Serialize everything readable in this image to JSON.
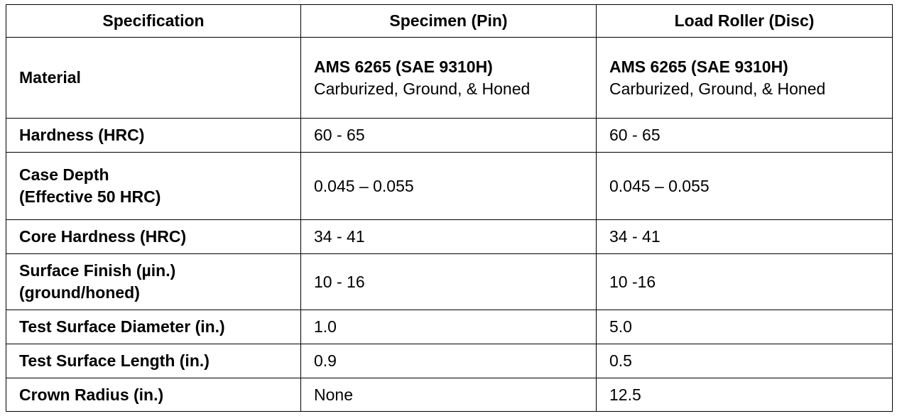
{
  "headers": [
    "Specification",
    "Specimen (Pin)",
    "Load Roller (Disc)"
  ],
  "rows": {
    "material": {
      "label": "Material",
      "pin": {
        "line1": "AMS 6265 (SAE 9310H)",
        "line2": "Carburized, Ground, & Honed"
      },
      "disc": {
        "line1": "AMS 6265 (SAE 9310H)",
        "line2": "Carburized, Ground, & Honed"
      }
    },
    "hardness": {
      "label": "Hardness (HRC)",
      "pin": "60 - 65",
      "disc": "60 - 65"
    },
    "case_depth": {
      "label_line1": "Case Depth",
      "label_line2": "(Effective 50 HRC)",
      "pin": "0.045 – 0.055",
      "disc": "0.045 – 0.055"
    },
    "core_hardness": {
      "label": "Core Hardness (HRC)",
      "pin": "34 - 41",
      "disc": "34 - 41"
    },
    "surface_finish": {
      "label_line1": "Surface Finish (µin.)",
      "label_line2": "(ground/honed)",
      "pin": "10 - 16",
      "disc": "10 -16"
    },
    "diameter": {
      "label": "Test Surface Diameter (in.)",
      "pin": "1.0",
      "disc": "5.0"
    },
    "length": {
      "label": "Test Surface Length (in.)",
      "pin": "0.9",
      "disc": "0.5"
    },
    "crown_radius": {
      "label": "Crown Radius (in.)",
      "pin": "None",
      "disc": "12.5"
    }
  }
}
